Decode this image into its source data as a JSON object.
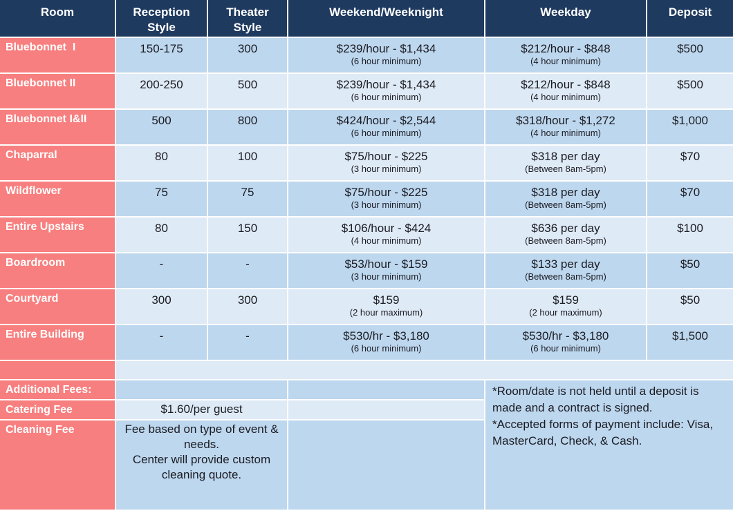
{
  "colors": {
    "header_bg": "#1F3A5F",
    "room_bg": "#F87F7F",
    "row_medium_bg": "#BDD7EE",
    "row_light_bg": "#DEEAF6",
    "border": "#FFFFFF",
    "header_text": "#FFFFFF",
    "body_text": "#1B1B22"
  },
  "table": {
    "headers": [
      "Room",
      "Reception\nStyle",
      "Theater\nStyle",
      "Weekend/Weeknight",
      "Weekday",
      "Deposit"
    ],
    "rows": [
      {
        "room": "Bluebonnet  I",
        "reception": "150-175",
        "theater": "300",
        "weekend": "$239/hour - $1,434",
        "weekend_note": "(6 hour minimum)",
        "weekday": "$212/hour - $848",
        "weekday_note": "(4 hour minimum)",
        "deposit": "$500"
      },
      {
        "room": "Bluebonnet II",
        "reception": "200-250",
        "theater": "500",
        "weekend": "$239/hour - $1,434",
        "weekend_note": "(6 hour minimum)",
        "weekday": "$212/hour - $848",
        "weekday_note": "(4 hour minimum)",
        "deposit": "$500"
      },
      {
        "room": "Bluebonnet I&II",
        "reception": "500",
        "theater": "800",
        "weekend": "$424/hour - $2,544",
        "weekend_note": "(6 hour minimum)",
        "weekday": "$318/hour - $1,272",
        "weekday_note": "(4 hour minimum)",
        "deposit": "$1,000"
      },
      {
        "room": "Chaparral",
        "reception": "80",
        "theater": "100",
        "weekend": "$75/hour - $225",
        "weekend_note": "(3 hour minimum)",
        "weekday": "$318 per day",
        "weekday_note": "(Between 8am-5pm)",
        "deposit": "$70"
      },
      {
        "room": "Wildflower",
        "reception": "75",
        "theater": "75",
        "weekend": "$75/hour - $225",
        "weekend_note": "(3 hour minimum)",
        "weekday": "$318 per day",
        "weekday_note": "(Between 8am-5pm)",
        "deposit": "$70"
      },
      {
        "room": "Entire Upstairs",
        "reception": "80",
        "theater": "150",
        "weekend": "$106/hour - $424",
        "weekend_note": "(4 hour minimum)",
        "weekday": "$636 per day",
        "weekday_note": "(Between 8am-5pm)",
        "deposit": "$100"
      },
      {
        "room": "Boardroom",
        "reception": "-",
        "theater": "-",
        "weekend": "$53/hour - $159",
        "weekend_note": "(3 hour minimum)",
        "weekday": "$133 per day",
        "weekday_note": "(Between 8am-5pm)",
        "deposit": "$50"
      },
      {
        "room": "Courtyard",
        "reception": "300",
        "theater": "300",
        "weekend": "$159",
        "weekend_note": "(2 hour maximum)",
        "weekday": "$159",
        "weekday_note": "(2 hour maximum)",
        "deposit": "$50"
      },
      {
        "room": "Entire Building",
        "reception": "-",
        "theater": "-",
        "weekend": "$530/hr - $3,180",
        "weekend_note": "(6 hour minimum)",
        "weekday": "$530/hr - $3,180",
        "weekday_note": "(6 hour minimum)",
        "deposit": "$1,500"
      }
    ]
  },
  "fees": {
    "section_label": "Additional Fees:",
    "catering_label": "Catering Fee",
    "catering_value": "$1.60/per guest",
    "cleaning_label": "Cleaning Fee",
    "cleaning_value": "Fee based on type of event & needs.\nCenter will provide custom cleaning quote."
  },
  "notes": {
    "line1": "*Room/date is not held until a deposit is made and a contract is signed.",
    "line2": "*Accepted forms of payment include: Visa, MasterCard, Check, & Cash."
  }
}
